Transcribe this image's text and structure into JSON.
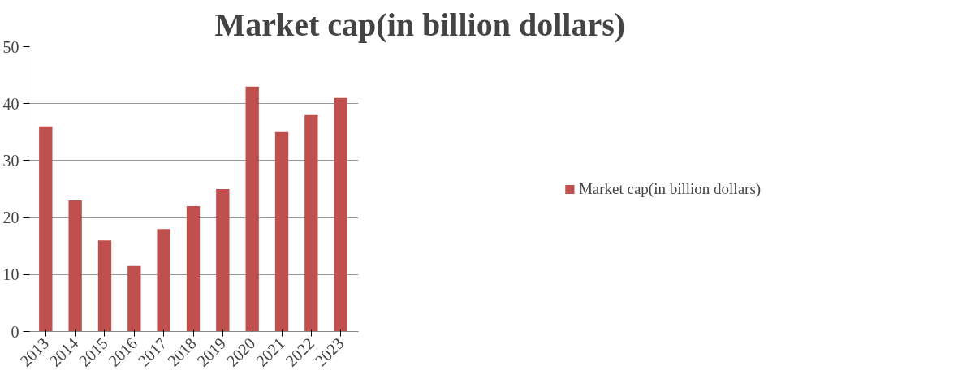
{
  "chart_data": {
    "type": "bar",
    "title": "Market cap(in billion dollars)",
    "categories": [
      "2013",
      "2014",
      "2015",
      "2016",
      "2017",
      "2018",
      "2019",
      "2020",
      "2021",
      "2022",
      "2023"
    ],
    "series": [
      {
        "name": "Market cap(in billion dollars)",
        "color": "#c0504d",
        "values": [
          36,
          23,
          16,
          11.5,
          18,
          22,
          25,
          43,
          35,
          38,
          41
        ]
      }
    ],
    "ylim": [
      0,
      50
    ],
    "yticks": [
      0,
      10,
      20,
      30,
      40,
      50
    ],
    "grid": "y",
    "legend": "right"
  }
}
